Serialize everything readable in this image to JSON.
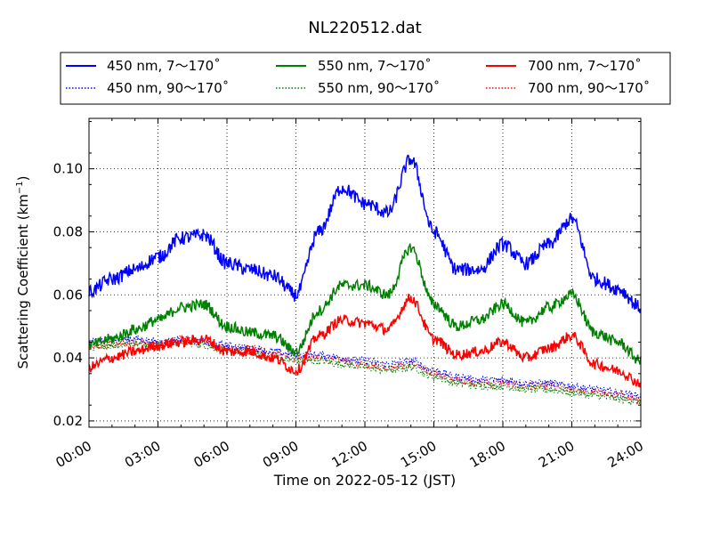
{
  "chart_data": {
    "type": "line",
    "title": "NL220512.dat",
    "xlabel": "Time on 2022-05-12 (JST)",
    "ylabel": "Scattering Coefficient (km",
    "ylabel_sup": "−1",
    "ylabel_tail": ")",
    "xlim": [
      "00:00",
      "24:00"
    ],
    "ylim": [
      0.018,
      0.116
    ],
    "x_ticks": [
      "00:00",
      "03:00",
      "06:00",
      "09:00",
      "12:00",
      "15:00",
      "18:00",
      "21:00",
      "24:00"
    ],
    "y_ticks": [
      "0.02",
      "0.04",
      "0.06",
      "0.08",
      "0.10"
    ],
    "y_tick_values": [
      0.02,
      0.04,
      0.06,
      0.08,
      0.1
    ],
    "grid": true,
    "legend_position": "top",
    "x": [
      "00:00",
      "01:00",
      "02:00",
      "03:00",
      "04:00",
      "05:00",
      "06:00",
      "07:00",
      "08:00",
      "09:00",
      "10:00",
      "11:00",
      "12:00",
      "13:00",
      "14:00",
      "15:00",
      "16:00",
      "17:00",
      "18:00",
      "19:00",
      "20:00",
      "21:00",
      "22:00",
      "23:00",
      "24:00"
    ],
    "series": [
      {
        "name": "450 nm, 7～170˚",
        "color": "#0000ff",
        "style": "solid",
        "values": [
          0.061,
          0.065,
          0.068,
          0.072,
          0.078,
          0.079,
          0.07,
          0.068,
          0.066,
          0.06,
          0.08,
          0.094,
          0.089,
          0.086,
          0.103,
          0.08,
          0.068,
          0.068,
          0.076,
          0.07,
          0.076,
          0.084,
          0.065,
          0.062,
          0.056
        ]
      },
      {
        "name": "450 nm, 90～170˚",
        "color": "#0000ff",
        "style": "dotted",
        "values": [
          0.045,
          0.046,
          0.046,
          0.045,
          0.046,
          0.045,
          0.044,
          0.043,
          0.042,
          0.041,
          0.041,
          0.04,
          0.039,
          0.038,
          0.039,
          0.036,
          0.034,
          0.033,
          0.033,
          0.032,
          0.032,
          0.031,
          0.03,
          0.029,
          0.028
        ]
      },
      {
        "name": "550 nm, 7～170˚",
        "color": "#008000",
        "style": "solid",
        "values": [
          0.044,
          0.046,
          0.049,
          0.052,
          0.056,
          0.057,
          0.05,
          0.048,
          0.047,
          0.042,
          0.055,
          0.063,
          0.063,
          0.06,
          0.075,
          0.057,
          0.05,
          0.052,
          0.057,
          0.051,
          0.056,
          0.06,
          0.048,
          0.045,
          0.039
        ]
      },
      {
        "name": "550 nm, 90～170˚",
        "color": "#008000",
        "style": "dotted",
        "values": [
          0.044,
          0.044,
          0.045,
          0.044,
          0.045,
          0.044,
          0.042,
          0.042,
          0.04,
          0.039,
          0.039,
          0.038,
          0.037,
          0.036,
          0.037,
          0.034,
          0.032,
          0.031,
          0.031,
          0.03,
          0.03,
          0.029,
          0.028,
          0.027,
          0.026
        ]
      },
      {
        "name": "700 nm, 7～170˚",
        "color": "#ff0000",
        "style": "solid",
        "values": [
          0.037,
          0.04,
          0.042,
          0.044,
          0.045,
          0.046,
          0.042,
          0.042,
          0.04,
          0.036,
          0.047,
          0.052,
          0.051,
          0.049,
          0.059,
          0.046,
          0.041,
          0.042,
          0.045,
          0.04,
          0.043,
          0.047,
          0.038,
          0.036,
          0.032
        ]
      },
      {
        "name": "700 nm, 90～170˚",
        "color": "#ff0000",
        "style": "dotted",
        "values": [
          0.043,
          0.044,
          0.045,
          0.044,
          0.046,
          0.045,
          0.043,
          0.043,
          0.041,
          0.04,
          0.04,
          0.039,
          0.038,
          0.037,
          0.038,
          0.035,
          0.033,
          0.032,
          0.032,
          0.031,
          0.031,
          0.03,
          0.029,
          0.028,
          0.027
        ]
      }
    ]
  }
}
